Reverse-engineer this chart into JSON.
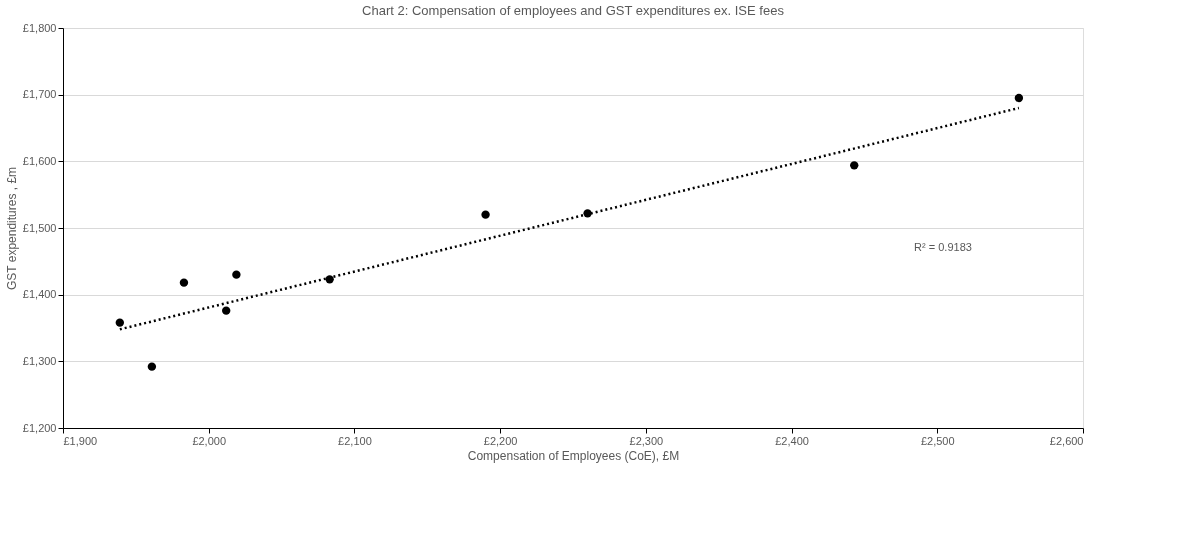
{
  "chart_data": {
    "type": "scatter",
    "title": "Chart 2: Compensation of employees and GST expenditures ex. ISE fees",
    "xlabel": "Compensation of Employees (CoE), £M",
    "ylabel": "GST expenditures  , £m",
    "series": [
      {
        "color": "#000000",
        "marker": "circle",
        "x": [
          1939,
          1961,
          1983,
          2012,
          2019,
          2083,
          2190,
          2260,
          2443,
          2556
        ],
        "values": [
          1358,
          1292,
          1418,
          1376,
          1430,
          1423,
          1520,
          1522,
          1594,
          1695
        ]
      },
      {
        "type": "line",
        "color": "#000000",
        "line_style": "dotted",
        "x": [
          1939,
          2556
        ],
        "values": [
          1348,
          1680
        ]
      }
    ],
    "annotations": [
      "R² = 0.9183"
    ],
    "xlim": [
      1900,
      2600
    ],
    "xticks": [
      {
        "value": 1900,
        "label": "£1,900"
      },
      {
        "value": 2000,
        "label": "£2,000"
      },
      {
        "value": 2100,
        "label": "£2,100"
      },
      {
        "value": 2200,
        "label": "£2,200"
      },
      {
        "value": 2300,
        "label": "£2,300"
      },
      {
        "value": 2400,
        "label": "£2,400"
      },
      {
        "value": 2500,
        "label": "£2,500"
      },
      {
        "value": 2600,
        "label": "£2,600"
      }
    ],
    "ylim": [
      1200,
      1800
    ],
    "yticks": [
      {
        "value": 1200,
        "label": "£1,200"
      },
      {
        "value": 1300,
        "label": "£1,300"
      },
      {
        "value": 1400,
        "label": "£1,400"
      },
      {
        "value": 1500,
        "label": "£1,500"
      },
      {
        "value": 1600,
        "label": "£1,600"
      },
      {
        "value": 1700,
        "label": "£1,700"
      },
      {
        "value": 1800,
        "label": "£1,800"
      }
    ],
    "grid": "y"
  }
}
